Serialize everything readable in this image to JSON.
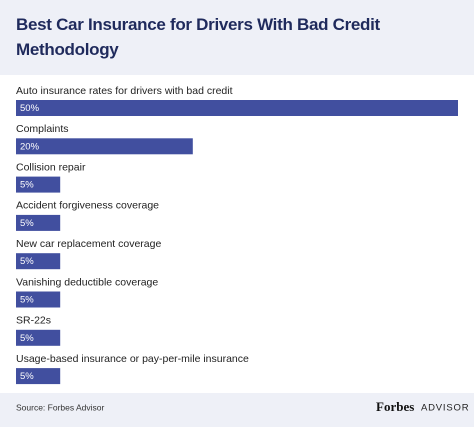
{
  "chart_data": {
    "type": "bar",
    "orientation": "horizontal",
    "title": "Best Car Insurance for Drivers With Bad Credit Methodology",
    "categories": [
      "Auto insurance rates for drivers with bad credit",
      "Complaints",
      "Collision repair",
      "Accident forgiveness coverage",
      "New car replacement coverage",
      "Vanishing deductible coverage",
      "SR-22s",
      "Usage-based insurance or pay-per-mile insurance"
    ],
    "values": [
      50,
      20,
      5,
      5,
      5,
      5,
      5,
      5
    ],
    "value_labels": [
      "50%",
      "20%",
      "5%",
      "5%",
      "5%",
      "5%",
      "5%",
      "5%"
    ],
    "color": "#414f9f",
    "xlim": [
      0,
      50
    ],
    "source": "Source: Forbes Advisor",
    "brand": "Forbes",
    "brand_suffix": "ADVISOR"
  }
}
